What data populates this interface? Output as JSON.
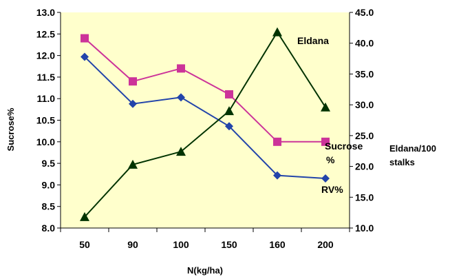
{
  "chart_data": {
    "type": "line",
    "categories": [
      "50",
      "90",
      "100",
      "150",
      "160",
      "200"
    ],
    "xlabel": "N(kg/ha)",
    "ylabel_left": "Sucrose%",
    "ylabel_right": [
      "Eldana/100",
      "stalks"
    ],
    "ylim_left": [
      8.0,
      13.0
    ],
    "ylim_right": [
      10.0,
      45.0
    ],
    "left_ticks": [
      "8.0",
      "8.5",
      "9.0",
      "9.5",
      "10.0",
      "10.5",
      "11.0",
      "11.5",
      "12.0",
      "12.5",
      "13.0"
    ],
    "right_ticks": [
      "10.0",
      "15.0",
      "20.0",
      "25.0",
      "30.0",
      "35.0",
      "40.0",
      "45.0"
    ],
    "grid": false,
    "plot_background": "#ffffcc",
    "series": [
      {
        "label": [
          "Sucrose",
          "%"
        ],
        "axis": "left",
        "marker": "square",
        "color": "#cc3399",
        "values": [
          12.4,
          11.4,
          11.7,
          11.1,
          10.0,
          10.0
        ]
      },
      {
        "label": [
          "RV%"
        ],
        "axis": "left",
        "marker": "diamond",
        "color": "#2244aa",
        "values": [
          11.97,
          10.88,
          11.03,
          10.36,
          9.22,
          9.15
        ]
      },
      {
        "label": [
          "Eldana"
        ],
        "axis": "right",
        "marker": "triangle",
        "color": "#003300",
        "values": [
          11.8,
          20.3,
          22.4,
          29.0,
          41.8,
          29.6
        ]
      }
    ]
  }
}
